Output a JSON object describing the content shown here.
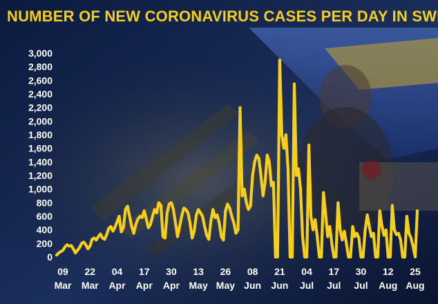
{
  "title": "NUMBER OF NEW CORONAVIRUS CASES PER DAY IN SWEDEN",
  "colors": {
    "accent": "#f5cf1c",
    "text": "#ffffff",
    "background": "#0d1733"
  },
  "chart_data": {
    "type": "line",
    "title": "NUMBER OF NEW CORONAVIRUS CASES PER DAY IN SWEDEN",
    "xlabel": "",
    "ylabel": "",
    "ylim": [
      0,
      3000
    ],
    "yticks": [
      0,
      200,
      400,
      600,
      800,
      1000,
      1200,
      1400,
      1600,
      1800,
      2000,
      2200,
      2400,
      2600,
      2800,
      3000
    ],
    "ytick_labels": [
      "0",
      "200",
      "400",
      "600",
      "800",
      "1,000",
      "1,200",
      "1,400",
      "1,600",
      "1,800",
      "2,000",
      "2,200",
      "2,400",
      "2,600",
      "2,800",
      "3,000"
    ],
    "xlim": [
      "2020-03-06",
      "2020-08-26"
    ],
    "xticks": [
      {
        "date": "2020-03-09",
        "day": "09",
        "month": "Mar"
      },
      {
        "date": "2020-03-22",
        "day": "22",
        "month": "Mar"
      },
      {
        "date": "2020-04-04",
        "day": "04",
        "month": "Apr"
      },
      {
        "date": "2020-04-17",
        "day": "17",
        "month": "Apr"
      },
      {
        "date": "2020-04-30",
        "day": "30",
        "month": "Apr"
      },
      {
        "date": "2020-05-13",
        "day": "13",
        "month": "May"
      },
      {
        "date": "2020-05-26",
        "day": "26",
        "month": "May"
      },
      {
        "date": "2020-06-08",
        "day": "08",
        "month": "Jun"
      },
      {
        "date": "2020-06-21",
        "day": "21",
        "month": "Jun"
      },
      {
        "date": "2020-07-04",
        "day": "04",
        "month": "Jul"
      },
      {
        "date": "2020-07-17",
        "day": "17",
        "month": "Jul"
      },
      {
        "date": "2020-07-30",
        "day": "30",
        "month": "Jul"
      },
      {
        "date": "2020-08-12",
        "day": "12",
        "month": "Aug"
      },
      {
        "date": "2020-08-25",
        "day": "25",
        "month": "Aug"
      }
    ],
    "grid": false,
    "legend": "none",
    "series": [
      {
        "color": "#f5cf1c",
        "points": [
          [
            "2020-03-06",
            30
          ],
          [
            "2020-03-07",
            60
          ],
          [
            "2020-03-08",
            80
          ],
          [
            "2020-03-09",
            100
          ],
          [
            "2020-03-10",
            150
          ],
          [
            "2020-03-11",
            180
          ],
          [
            "2020-03-12",
            160
          ],
          [
            "2020-03-13",
            170
          ],
          [
            "2020-03-14",
            120
          ],
          [
            "2020-03-15",
            60
          ],
          [
            "2020-03-16",
            100
          ],
          [
            "2020-03-17",
            140
          ],
          [
            "2020-03-18",
            200
          ],
          [
            "2020-03-19",
            220
          ],
          [
            "2020-03-20",
            180
          ],
          [
            "2020-03-21",
            120
          ],
          [
            "2020-03-22",
            160
          ],
          [
            "2020-03-23",
            260
          ],
          [
            "2020-03-24",
            280
          ],
          [
            "2020-03-25",
            250
          ],
          [
            "2020-03-26",
            300
          ],
          [
            "2020-03-27",
            340
          ],
          [
            "2020-03-28",
            280
          ],
          [
            "2020-03-29",
            260
          ],
          [
            "2020-03-30",
            330
          ],
          [
            "2020-03-31",
            420
          ],
          [
            "2020-04-01",
            450
          ],
          [
            "2020-04-02",
            380
          ],
          [
            "2020-04-03",
            440
          ],
          [
            "2020-04-04",
            520
          ],
          [
            "2020-04-05",
            600
          ],
          [
            "2020-04-06",
            370
          ],
          [
            "2020-04-07",
            430
          ],
          [
            "2020-04-08",
            700
          ],
          [
            "2020-04-09",
            750
          ],
          [
            "2020-04-10",
            600
          ],
          [
            "2020-04-11",
            450
          ],
          [
            "2020-04-12",
            350
          ],
          [
            "2020-04-13",
            480
          ],
          [
            "2020-04-14",
            560
          ],
          [
            "2020-04-15",
            600
          ],
          [
            "2020-04-16",
            580
          ],
          [
            "2020-04-17",
            680
          ],
          [
            "2020-04-18",
            560
          ],
          [
            "2020-04-19",
            430
          ],
          [
            "2020-04-20",
            480
          ],
          [
            "2020-04-21",
            600
          ],
          [
            "2020-04-22",
            700
          ],
          [
            "2020-04-23",
            650
          ],
          [
            "2020-04-24",
            800
          ],
          [
            "2020-04-25",
            760
          ],
          [
            "2020-04-26",
            300
          ],
          [
            "2020-04-27",
            280
          ],
          [
            "2020-04-28",
            650
          ],
          [
            "2020-04-29",
            780
          ],
          [
            "2020-04-30",
            800
          ],
          [
            "2020-05-01",
            700
          ],
          [
            "2020-05-02",
            500
          ],
          [
            "2020-05-03",
            300
          ],
          [
            "2020-05-04",
            450
          ],
          [
            "2020-05-05",
            600
          ],
          [
            "2020-05-06",
            720
          ],
          [
            "2020-05-07",
            700
          ],
          [
            "2020-05-08",
            650
          ],
          [
            "2020-05-09",
            500
          ],
          [
            "2020-05-10",
            280
          ],
          [
            "2020-05-11",
            380
          ],
          [
            "2020-05-12",
            620
          ],
          [
            "2020-05-13",
            700
          ],
          [
            "2020-05-14",
            650
          ],
          [
            "2020-05-15",
            600
          ],
          [
            "2020-05-16",
            450
          ],
          [
            "2020-05-17",
            320
          ],
          [
            "2020-05-18",
            260
          ],
          [
            "2020-05-19",
            530
          ],
          [
            "2020-05-20",
            700
          ],
          [
            "2020-05-21",
            580
          ],
          [
            "2020-05-22",
            620
          ],
          [
            "2020-05-23",
            500
          ],
          [
            "2020-05-24",
            300
          ],
          [
            "2020-05-25",
            250
          ],
          [
            "2020-05-26",
            680
          ],
          [
            "2020-05-27",
            780
          ],
          [
            "2020-05-28",
            720
          ],
          [
            "2020-05-29",
            600
          ],
          [
            "2020-05-30",
            500
          ],
          [
            "2020-05-31",
            350
          ],
          [
            "2020-06-01",
            400
          ],
          [
            "2020-06-02",
            2200
          ],
          [
            "2020-06-03",
            900
          ],
          [
            "2020-06-04",
            1000
          ],
          [
            "2020-06-05",
            800
          ],
          [
            "2020-06-06",
            700
          ],
          [
            "2020-06-07",
            750
          ],
          [
            "2020-06-08",
            1200
          ],
          [
            "2020-06-09",
            1400
          ],
          [
            "2020-06-10",
            1500
          ],
          [
            "2020-06-11",
            1450
          ],
          [
            "2020-06-12",
            1200
          ],
          [
            "2020-06-13",
            900
          ],
          [
            "2020-06-14",
            1100
          ],
          [
            "2020-06-15",
            1500
          ],
          [
            "2020-06-16",
            1400
          ],
          [
            "2020-06-17",
            1050
          ],
          [
            "2020-06-18",
            1100
          ],
          [
            "2020-06-19",
            0
          ],
          [
            "2020-06-20",
            0
          ],
          [
            "2020-06-21",
            2900
          ],
          [
            "2020-06-22",
            1800
          ],
          [
            "2020-06-23",
            1600
          ],
          [
            "2020-06-24",
            1800
          ],
          [
            "2020-06-25",
            1300
          ],
          [
            "2020-06-26",
            0
          ],
          [
            "2020-06-27",
            0
          ],
          [
            "2020-06-28",
            2550
          ],
          [
            "2020-06-29",
            1200
          ],
          [
            "2020-06-30",
            1300
          ],
          [
            "2020-07-01",
            1000
          ],
          [
            "2020-07-02",
            300
          ],
          [
            "2020-07-03",
            0
          ],
          [
            "2020-07-04",
            0
          ],
          [
            "2020-07-05",
            1650
          ],
          [
            "2020-07-06",
            600
          ],
          [
            "2020-07-07",
            400
          ],
          [
            "2020-07-08",
            550
          ],
          [
            "2020-07-09",
            300
          ],
          [
            "2020-07-10",
            0
          ],
          [
            "2020-07-11",
            0
          ],
          [
            "2020-07-12",
            950
          ],
          [
            "2020-07-13",
            650
          ],
          [
            "2020-07-14",
            300
          ],
          [
            "2020-07-15",
            450
          ],
          [
            "2020-07-16",
            200
          ],
          [
            "2020-07-17",
            0
          ],
          [
            "2020-07-18",
            0
          ],
          [
            "2020-07-19",
            800
          ],
          [
            "2020-07-20",
            400
          ],
          [
            "2020-07-21",
            250
          ],
          [
            "2020-07-22",
            380
          ],
          [
            "2020-07-23",
            200
          ],
          [
            "2020-07-24",
            0
          ],
          [
            "2020-07-25",
            0
          ],
          [
            "2020-07-26",
            450
          ],
          [
            "2020-07-27",
            300
          ],
          [
            "2020-07-28",
            350
          ],
          [
            "2020-07-29",
            280
          ],
          [
            "2020-07-30",
            0
          ],
          [
            "2020-07-31",
            0
          ],
          [
            "2020-08-01",
            400
          ],
          [
            "2020-08-02",
            620
          ],
          [
            "2020-08-03",
            450
          ],
          [
            "2020-08-04",
            300
          ],
          [
            "2020-08-05",
            350
          ],
          [
            "2020-08-06",
            0
          ],
          [
            "2020-08-07",
            0
          ],
          [
            "2020-08-08",
            680
          ],
          [
            "2020-08-09",
            470
          ],
          [
            "2020-08-10",
            320
          ],
          [
            "2020-08-11",
            400
          ],
          [
            "2020-08-12",
            0
          ],
          [
            "2020-08-13",
            0
          ],
          [
            "2020-08-14",
            760
          ],
          [
            "2020-08-15",
            400
          ],
          [
            "2020-08-16",
            330
          ],
          [
            "2020-08-17",
            350
          ],
          [
            "2020-08-18",
            250
          ],
          [
            "2020-08-19",
            0
          ],
          [
            "2020-08-20",
            0
          ],
          [
            "2020-08-21",
            600
          ],
          [
            "2020-08-22",
            350
          ],
          [
            "2020-08-23",
            280
          ],
          [
            "2020-08-24",
            150
          ],
          [
            "2020-08-25",
            0
          ],
          [
            "2020-08-26",
            680
          ]
        ]
      }
    ]
  }
}
